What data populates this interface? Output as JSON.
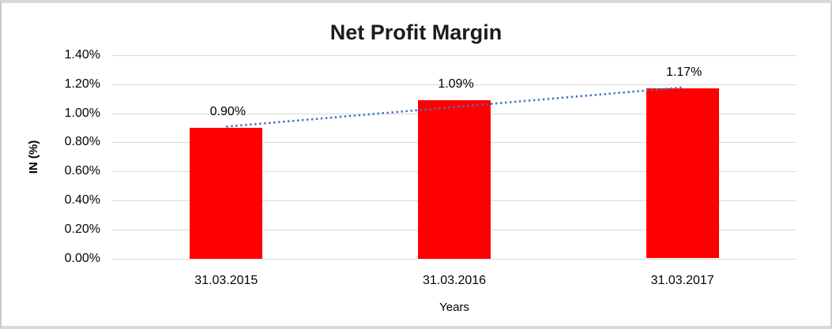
{
  "chart_data": {
    "type": "bar",
    "title": "Net Profit Margin",
    "xlabel": "Years",
    "ylabel": "IN (%)",
    "categories": [
      "31.03.2015",
      "31.03.2016",
      "31.03.2017"
    ],
    "values": [
      0.9,
      1.09,
      1.17
    ],
    "data_labels": [
      "0.90%",
      "1.09%",
      "1.17%"
    ],
    "y_ticks": [
      "1.40%",
      "1.20%",
      "1.00%",
      "0.80%",
      "0.60%",
      "0.40%",
      "0.20%",
      "0.00%"
    ],
    "ylim": [
      0,
      1.4
    ],
    "grid": true,
    "legend": "none",
    "colors": {
      "bar": "#ff0000",
      "trendline": "#4472c4",
      "gridline": "#d9d9d9",
      "title_text": "#1c1c1c",
      "axis_text": "#050505"
    },
    "trendline": {
      "style": "dotted",
      "color": "#4472c4",
      "start_value": 0.9,
      "end_value": 1.17
    }
  }
}
